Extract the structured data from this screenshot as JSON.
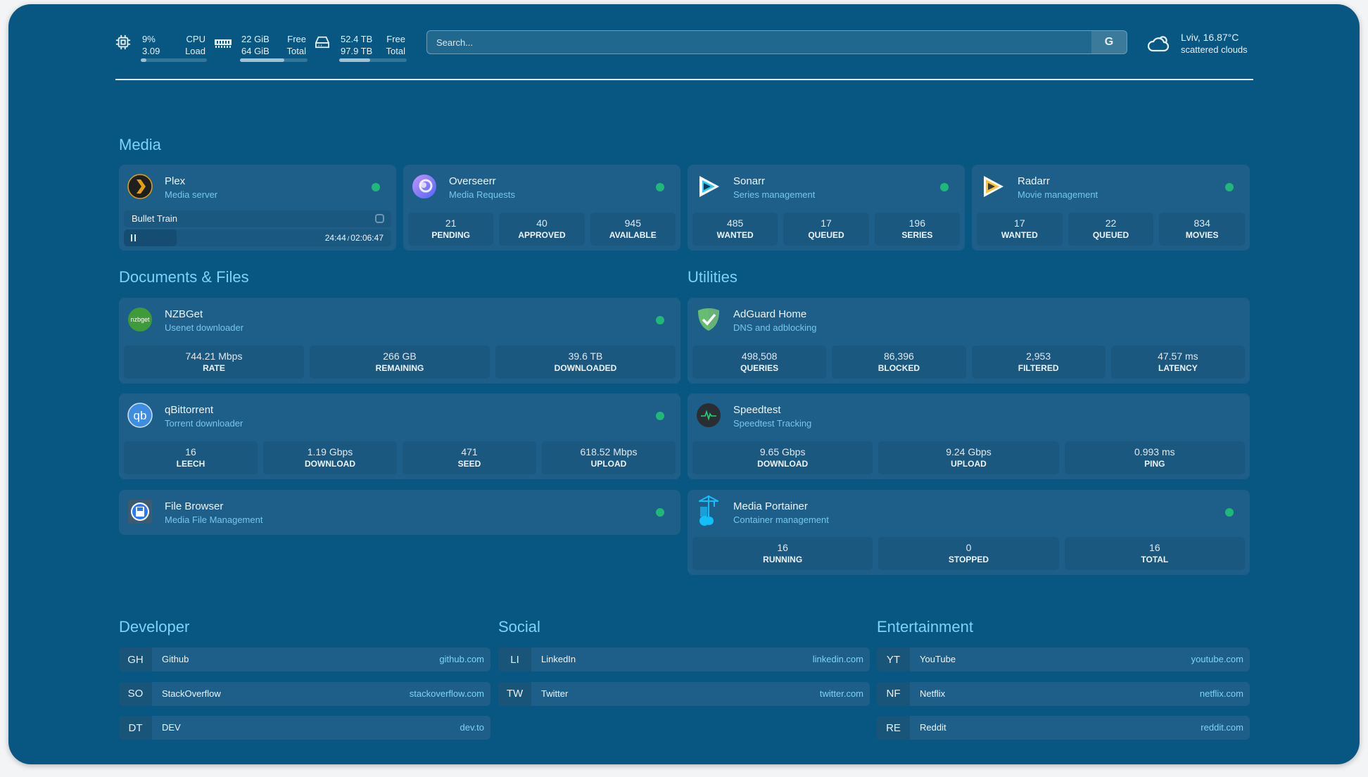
{
  "topbar": {
    "cpu": {
      "icon": "cpu-icon",
      "value": "9%",
      "load": "3.09",
      "label1": "CPU",
      "label2": "Load",
      "percent": 9
    },
    "memory": {
      "icon": "memory-icon",
      "free": "22 GiB",
      "total": "64 GiB",
      "label1": "Free",
      "label2": "Total",
      "percent": 66
    },
    "disk": {
      "icon": "hard-drive-icon",
      "free": "52.4 TB",
      "total": "97.9 TB",
      "label1": "Free",
      "label2": "Total",
      "percent": 46
    },
    "search": {
      "placeholder": "Search...",
      "button": "G"
    },
    "weather": {
      "icon": "cloud-sun-icon",
      "location_temp": "Lviv, 16.87°C",
      "condition": "scattered clouds"
    }
  },
  "colors": {
    "background": "#085783",
    "card": "#1e5f89",
    "stat": "#1b5880",
    "heading": "#7dd3f7",
    "status_online": "#20b878"
  },
  "sections": {
    "media": "Media",
    "documents": "Documents & Files",
    "utilities": "Utilities",
    "developer": "Developer",
    "social": "Social",
    "entertainment": "Entertainment"
  },
  "services": {
    "plex": {
      "name": "Plex",
      "desc": "Media server",
      "icon": "plex-icon",
      "now_playing": {
        "title": "Bullet Train",
        "position": "24:44",
        "duration": "02:06:47",
        "sep": "/"
      }
    },
    "overseerr": {
      "name": "Overseerr",
      "desc": "Media Requests",
      "icon": "overseerr-icon",
      "stats": [
        {
          "v": "21",
          "l": "PENDING"
        },
        {
          "v": "40",
          "l": "APPROVED"
        },
        {
          "v": "945",
          "l": "AVAILABLE"
        }
      ]
    },
    "sonarr": {
      "name": "Sonarr",
      "desc": "Series management",
      "icon": "sonarr-icon",
      "stats": [
        {
          "v": "485",
          "l": "WANTED"
        },
        {
          "v": "17",
          "l": "QUEUED"
        },
        {
          "v": "196",
          "l": "SERIES"
        }
      ]
    },
    "radarr": {
      "name": "Radarr",
      "desc": "Movie management",
      "icon": "radarr-icon",
      "stats": [
        {
          "v": "17",
          "l": "WANTED"
        },
        {
          "v": "22",
          "l": "QUEUED"
        },
        {
          "v": "834",
          "l": "MOVIES"
        }
      ]
    },
    "nzbget": {
      "name": "NZBGet",
      "desc": "Usenet downloader",
      "icon": "nzbget-icon",
      "icon_text": "nzbget",
      "stats": [
        {
          "v": "744.21 Mbps",
          "l": "RATE"
        },
        {
          "v": "266 GB",
          "l": "REMAINING"
        },
        {
          "v": "39.6 TB",
          "l": "DOWNLOADED"
        }
      ]
    },
    "qbittorrent": {
      "name": "qBittorrent",
      "desc": "Torrent downloader",
      "icon": "qbittorrent-icon",
      "icon_text": "qb",
      "stats": [
        {
          "v": "16",
          "l": "LEECH"
        },
        {
          "v": "1.19 Gbps",
          "l": "DOWNLOAD"
        },
        {
          "v": "471",
          "l": "SEED"
        },
        {
          "v": "618.52 Mbps",
          "l": "UPLOAD"
        }
      ]
    },
    "filebrowser": {
      "name": "File Browser",
      "desc": "Media File Management",
      "icon": "file-browser-icon"
    },
    "adguard": {
      "name": "AdGuard Home",
      "desc": "DNS and adblocking",
      "icon": "adguard-shield-icon",
      "stats": [
        {
          "v": "498,508",
          "l": "QUERIES"
        },
        {
          "v": "86,396",
          "l": "BLOCKED"
        },
        {
          "v": "2,953",
          "l": "FILTERED"
        },
        {
          "v": "47.57 ms",
          "l": "LATENCY"
        }
      ]
    },
    "speedtest": {
      "name": "Speedtest",
      "desc": "Speedtest Tracking",
      "icon": "speedtest-icon",
      "stats": [
        {
          "v": "9.65 Gbps",
          "l": "DOWNLOAD"
        },
        {
          "v": "9.24 Gbps",
          "l": "UPLOAD"
        },
        {
          "v": "0.993 ms",
          "l": "PING"
        }
      ]
    },
    "portainer": {
      "name": "Media Portainer",
      "desc": "Container management",
      "icon": "portainer-icon",
      "stats": [
        {
          "v": "16",
          "l": "RUNNING"
        },
        {
          "v": "0",
          "l": "STOPPED"
        },
        {
          "v": "16",
          "l": "TOTAL"
        }
      ]
    }
  },
  "bookmarks": {
    "developer": [
      {
        "abbr": "GH",
        "name": "Github",
        "url": "github.com"
      },
      {
        "abbr": "SO",
        "name": "StackOverflow",
        "url": "stackoverflow.com"
      },
      {
        "abbr": "DT",
        "name": "DEV",
        "url": "dev.to"
      }
    ],
    "social": [
      {
        "abbr": "LI",
        "name": "LinkedIn",
        "url": "linkedin.com"
      },
      {
        "abbr": "TW",
        "name": "Twitter",
        "url": "twitter.com"
      }
    ],
    "entertainment": [
      {
        "abbr": "YT",
        "name": "YouTube",
        "url": "youtube.com"
      },
      {
        "abbr": "NF",
        "name": "Netflix",
        "url": "netflix.com"
      },
      {
        "abbr": "RE",
        "name": "Reddit",
        "url": "reddit.com"
      }
    ]
  }
}
